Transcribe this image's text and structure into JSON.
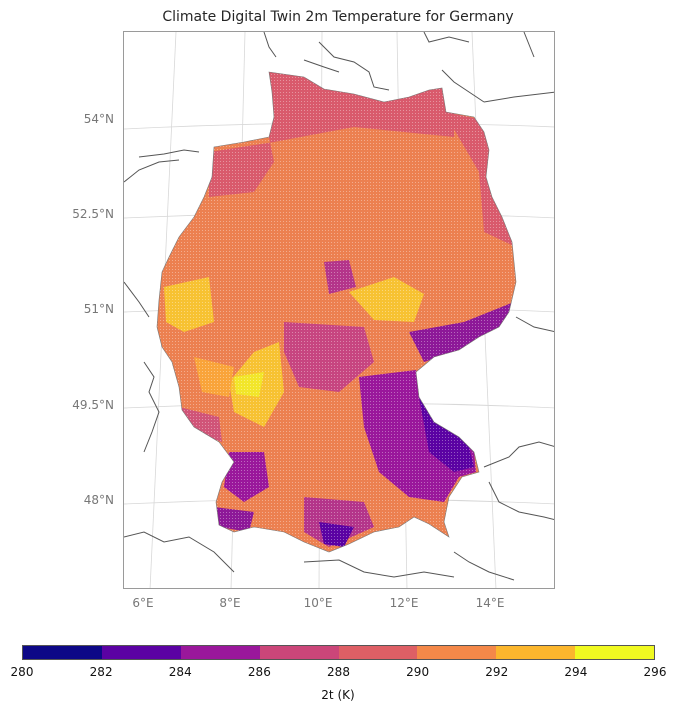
{
  "title": "Climate Digital Twin 2m Temperature for Germany",
  "lat_labels": [
    "54°N",
    "52.5°N",
    "51°N",
    "49.5°N",
    "48°N"
  ],
  "lon_labels": [
    "6°E",
    "8°E",
    "10°E",
    "12°E",
    "14°E"
  ],
  "colorbar": {
    "label": "2t (K)",
    "ticks": [
      "280",
      "282",
      "284",
      "286",
      "288",
      "290",
      "292",
      "294",
      "296"
    ],
    "colors": [
      "#0d0887",
      "#5b02a3",
      "#9a179b",
      "#cb4679",
      "#de5f65",
      "#f48849",
      "#fbb62d",
      "#f0f921"
    ]
  }
}
